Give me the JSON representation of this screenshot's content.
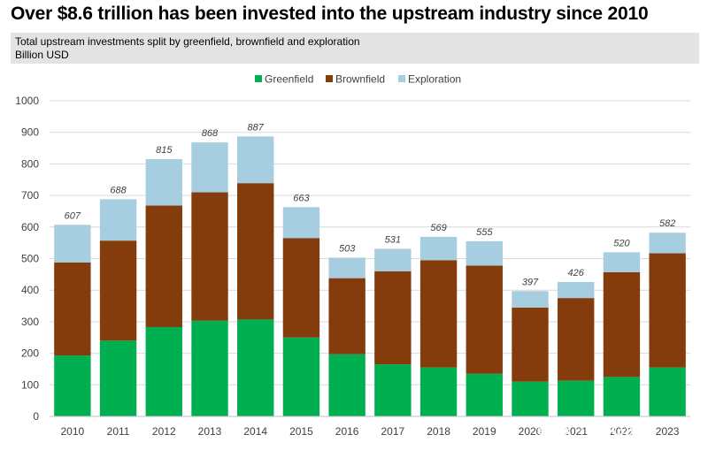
{
  "header": {
    "title": "Over $8.6 trillion has been invested into the upstream industry since 2010",
    "subtitle": "Total upstream investments split by greenfield, brownfield and exploration",
    "unit": "Billion USD"
  },
  "watermark": {
    "text": "雪球 · OilGas"
  },
  "colors": {
    "greenfield": "#00b050",
    "brownfield": "#843c0c",
    "exploration": "#a6cde0",
    "grid": "#d9d9d9"
  },
  "chart_data": {
    "type": "bar",
    "stacked": true,
    "categories": [
      "2010",
      "2011",
      "2012",
      "2013",
      "2014",
      "2015",
      "2016",
      "2017",
      "2018",
      "2019",
      "2020",
      "2021",
      "2022",
      "2023"
    ],
    "series": [
      {
        "name": "Greenfield",
        "color": "#00b050",
        "values": [
          193,
          240,
          283,
          303,
          307,
          250,
          197,
          165,
          155,
          135,
          110,
          113,
          125,
          155
        ]
      },
      {
        "name": "Brownfield",
        "color": "#843c0c",
        "values": [
          295,
          317,
          385,
          407,
          432,
          315,
          241,
          295,
          340,
          343,
          235,
          262,
          332,
          362
        ]
      },
      {
        "name": "Exploration",
        "color": "#a6cde0",
        "values": [
          119,
          131,
          147,
          158,
          148,
          98,
          65,
          71,
          74,
          77,
          52,
          51,
          63,
          65
        ]
      }
    ],
    "totals": [
      607,
      688,
      815,
      868,
      887,
      663,
      503,
      531,
      569,
      555,
      397,
      426,
      520,
      582
    ],
    "ylim": [
      0,
      1000
    ],
    "yticks": [
      0,
      100,
      200,
      300,
      400,
      500,
      600,
      700,
      800,
      900,
      1000
    ],
    "grid": true,
    "legend_position": "top-center"
  }
}
